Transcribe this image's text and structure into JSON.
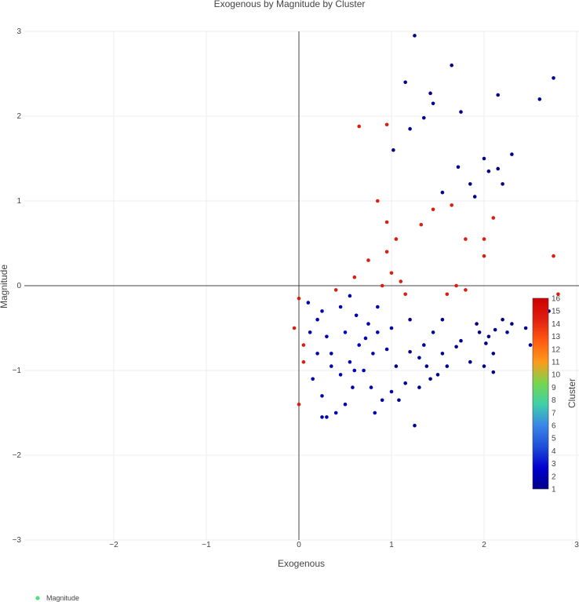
{
  "chart_data": {
    "type": "scatter",
    "title": "Exogenous by Magnitude by Cluster",
    "xlabel": "Exogenous",
    "ylabel": "Magnitude",
    "xlim": [
      -3,
      3
    ],
    "ylim": [
      -3,
      3
    ],
    "x_ticks": [
      -2,
      -1,
      0,
      1,
      2,
      3
    ],
    "y_ticks": [
      -3,
      -2,
      -1,
      0,
      1,
      2,
      3
    ],
    "colorbar": {
      "title": "Cluster",
      "min": 1,
      "max": 16,
      "ticks": [
        1,
        2,
        3,
        4,
        5,
        6,
        7,
        8,
        9,
        10,
        11,
        12,
        13,
        14,
        15,
        16
      ],
      "colorscale": [
        "#00008b",
        "#0000cd",
        "#1e4fd8",
        "#3a86e8",
        "#3fd0a8",
        "#76d64d",
        "#ff9a1a",
        "#ff5a10",
        "#e02010",
        "#cc0000"
      ]
    },
    "legend": {
      "entries": [
        "Magnitude"
      ],
      "position": "bottom-left",
      "color": "#4fe07a"
    },
    "grid": true,
    "series": [
      {
        "name": "Magnitude",
        "points": [
          [
            1.25,
            2.95
          ],
          [
            1.65,
            2.6
          ],
          [
            2.75,
            2.45
          ],
          [
            1.15,
            2.4
          ],
          [
            1.42,
            2.27
          ],
          [
            2.15,
            2.25
          ],
          [
            2.6,
            2.2
          ],
          [
            1.45,
            2.15
          ],
          [
            1.35,
            1.98
          ],
          [
            0.95,
            1.9
          ],
          [
            1.2,
            1.85
          ],
          [
            0.65,
            1.88
          ],
          [
            1.75,
            2.05
          ],
          [
            2.3,
            1.55
          ],
          [
            1.02,
            1.6
          ],
          [
            1.72,
            1.4
          ],
          [
            2.05,
            1.35
          ],
          [
            2.2,
            1.2
          ],
          [
            1.55,
            1.1
          ],
          [
            1.85,
            1.2
          ],
          [
            2.0,
            1.5
          ],
          [
            2.15,
            1.38
          ],
          [
            1.9,
            1.05
          ],
          [
            2.1,
            0.8
          ],
          [
            1.45,
            0.9
          ],
          [
            1.65,
            0.95
          ],
          [
            1.32,
            0.72
          ],
          [
            0.85,
            1.0
          ],
          [
            0.95,
            0.75
          ],
          [
            2.0,
            0.55
          ],
          [
            1.8,
            0.55
          ],
          [
            2.0,
            0.35
          ],
          [
            2.75,
            0.35
          ],
          [
            1.05,
            0.55
          ],
          [
            0.95,
            0.4
          ],
          [
            0.75,
            0.3
          ],
          [
            0.6,
            0.1
          ],
          [
            1.0,
            0.15
          ],
          [
            1.1,
            0.05
          ],
          [
            1.7,
            0.0
          ],
          [
            1.8,
            -0.05
          ],
          [
            1.6,
            -0.1
          ],
          [
            2.2,
            -0.4
          ],
          [
            2.3,
            -0.45
          ],
          [
            2.45,
            -0.5
          ],
          [
            2.62,
            -0.45
          ],
          [
            2.8,
            -0.1
          ],
          [
            2.7,
            -0.3
          ],
          [
            1.95,
            -0.55
          ],
          [
            2.05,
            -0.6
          ],
          [
            2.12,
            -0.52
          ],
          [
            2.02,
            -0.68
          ],
          [
            2.1,
            -0.8
          ],
          [
            2.0,
            -0.95
          ],
          [
            2.1,
            -1.02
          ],
          [
            1.85,
            -0.9
          ],
          [
            1.7,
            -0.72
          ],
          [
            1.55,
            -0.4
          ],
          [
            1.45,
            -0.55
          ],
          [
            1.35,
            -0.7
          ],
          [
            1.38,
            -0.95
          ],
          [
            1.3,
            -0.85
          ],
          [
            1.5,
            -1.05
          ],
          [
            1.55,
            -0.8
          ],
          [
            1.6,
            -0.95
          ],
          [
            1.75,
            -0.65
          ],
          [
            1.42,
            -1.1
          ],
          [
            1.3,
            -1.2
          ],
          [
            1.2,
            -0.78
          ],
          [
            1.15,
            -1.15
          ],
          [
            1.05,
            -0.95
          ],
          [
            1.0,
            -1.25
          ],
          [
            1.08,
            -1.35
          ],
          [
            0.9,
            -1.35
          ],
          [
            0.78,
            -1.2
          ],
          [
            0.8,
            -0.8
          ],
          [
            0.7,
            -1.0
          ],
          [
            0.85,
            -0.55
          ],
          [
            0.75,
            -0.45
          ],
          [
            0.65,
            -0.7
          ],
          [
            0.55,
            -0.9
          ],
          [
            0.5,
            -0.55
          ],
          [
            0.45,
            -1.05
          ],
          [
            0.58,
            -1.2
          ],
          [
            0.5,
            -1.4
          ],
          [
            0.4,
            -1.5
          ],
          [
            0.25,
            -1.55
          ],
          [
            0.35,
            -0.8
          ],
          [
            0.3,
            -0.6
          ],
          [
            0.2,
            -0.4
          ],
          [
            0.1,
            -0.2
          ],
          [
            0.05,
            -0.7
          ],
          [
            0.15,
            -1.1
          ],
          [
            0.25,
            -1.3
          ],
          [
            0.0,
            -1.4
          ],
          [
            0.05,
            -0.9
          ],
          [
            -0.05,
            -0.5
          ],
          [
            0.0,
            -0.15
          ],
          [
            0.12,
            -0.55
          ],
          [
            0.45,
            -0.25
          ],
          [
            0.62,
            -0.35
          ],
          [
            0.85,
            -0.25
          ],
          [
            0.9,
            0.0
          ],
          [
            1.15,
            -0.1
          ],
          [
            1.25,
            -1.65
          ],
          [
            0.3,
            -1.55
          ],
          [
            0.82,
            -1.5
          ],
          [
            0.6,
            -1.0
          ],
          [
            0.35,
            -0.95
          ],
          [
            0.2,
            -0.8
          ],
          [
            1.92,
            -0.45
          ],
          [
            2.25,
            -0.55
          ],
          [
            2.5,
            -0.7
          ],
          [
            1.2,
            -0.4
          ],
          [
            1.0,
            -0.5
          ],
          [
            0.95,
            -0.75
          ],
          [
            0.72,
            -0.62
          ],
          [
            0.55,
            -0.12
          ],
          [
            0.4,
            -0.05
          ],
          [
            0.25,
            -0.3
          ]
        ]
      }
    ]
  }
}
